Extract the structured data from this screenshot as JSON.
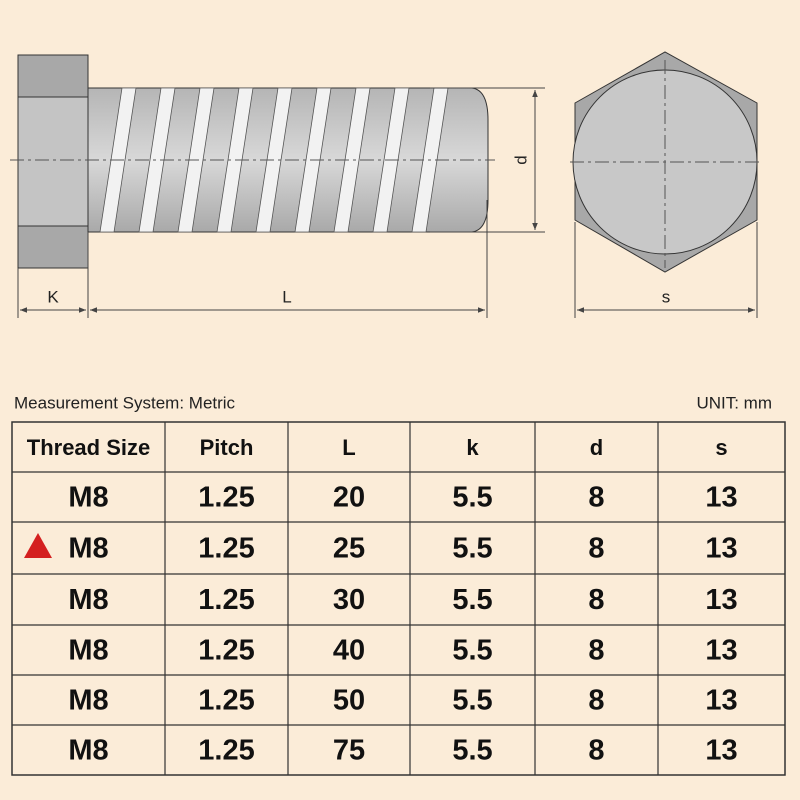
{
  "diagram": {
    "labels": {
      "k": "K",
      "l": "L",
      "d": "d",
      "s": "s"
    }
  },
  "caption": {
    "system": "Measurement System: Metric",
    "unit": "UNIT: mm"
  },
  "table": {
    "header": [
      "Thread Size",
      "Pitch",
      "L",
      "k",
      "d",
      "s"
    ],
    "rows": [
      [
        "M8",
        "1.25",
        "20",
        "5.5",
        "8",
        "13"
      ],
      [
        "M8",
        "1.25",
        "25",
        "5.5",
        "8",
        "13"
      ],
      [
        "M8",
        "1.25",
        "30",
        "5.5",
        "8",
        "13"
      ],
      [
        "M8",
        "1.25",
        "40",
        "5.5",
        "8",
        "13"
      ],
      [
        "M8",
        "1.25",
        "50",
        "5.5",
        "8",
        "13"
      ],
      [
        "M8",
        "1.25",
        "75",
        "5.5",
        "8",
        "13"
      ]
    ]
  }
}
